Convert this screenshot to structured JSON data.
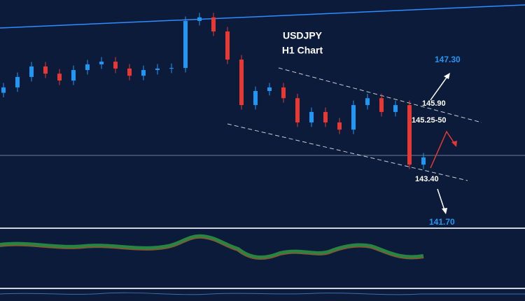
{
  "chart_data": {
    "type": "candlestick",
    "title": "USDJPY",
    "subtitle": "H1 Chart",
    "open": [
      145.5,
      145.68,
      146.03,
      146.38,
      146.14,
      145.91,
      146.26,
      146.45,
      146.54,
      146.31,
      146.07,
      146.26,
      146.31,
      146.33,
      147.9,
      148.02,
      147.55,
      146.61,
      145.09,
      145.56,
      145.68,
      145.32,
      144.51,
      144.86,
      144.51,
      144.27,
      145.09,
      145.32,
      144.86,
      145.09,
      143.1
    ],
    "high": [
      145.83,
      146.18,
      146.53,
      146.53,
      146.29,
      146.41,
      146.6,
      146.69,
      146.69,
      146.46,
      146.41,
      146.46,
      146.48,
      148.05,
      148.17,
      148.17,
      147.7,
      146.76,
      145.71,
      145.83,
      145.83,
      145.47,
      145.01,
      145.01,
      144.66,
      145.24,
      145.47,
      145.47,
      145.24,
      145.24,
      143.49
    ],
    "low": [
      145.35,
      145.53,
      145.88,
      145.99,
      145.76,
      145.76,
      146.11,
      146.3,
      146.16,
      145.92,
      145.92,
      146.11,
      146.16,
      146.18,
      147.75,
      147.4,
      146.46,
      144.94,
      144.94,
      145.41,
      145.17,
      144.36,
      144.36,
      144.36,
      144.12,
      144.12,
      144.94,
      144.71,
      144.71,
      142.95,
      142.95
    ],
    "close": [
      145.68,
      146.03,
      146.38,
      146.14,
      145.91,
      146.26,
      146.45,
      146.54,
      146.31,
      146.07,
      146.26,
      146.31,
      146.33,
      147.9,
      148.02,
      147.55,
      146.61,
      145.09,
      145.56,
      145.68,
      145.32,
      144.51,
      144.86,
      144.51,
      144.27,
      145.09,
      145.32,
      144.86,
      145.09,
      143.1,
      143.34
    ],
    "up_color": "#2196f3",
    "down_color": "#e53935",
    "ylim": [
      141.0,
      148.6
    ],
    "annotations": [
      "147.30",
      "145.90",
      "145.25-50",
      "143.40",
      "141.70"
    ]
  }
}
